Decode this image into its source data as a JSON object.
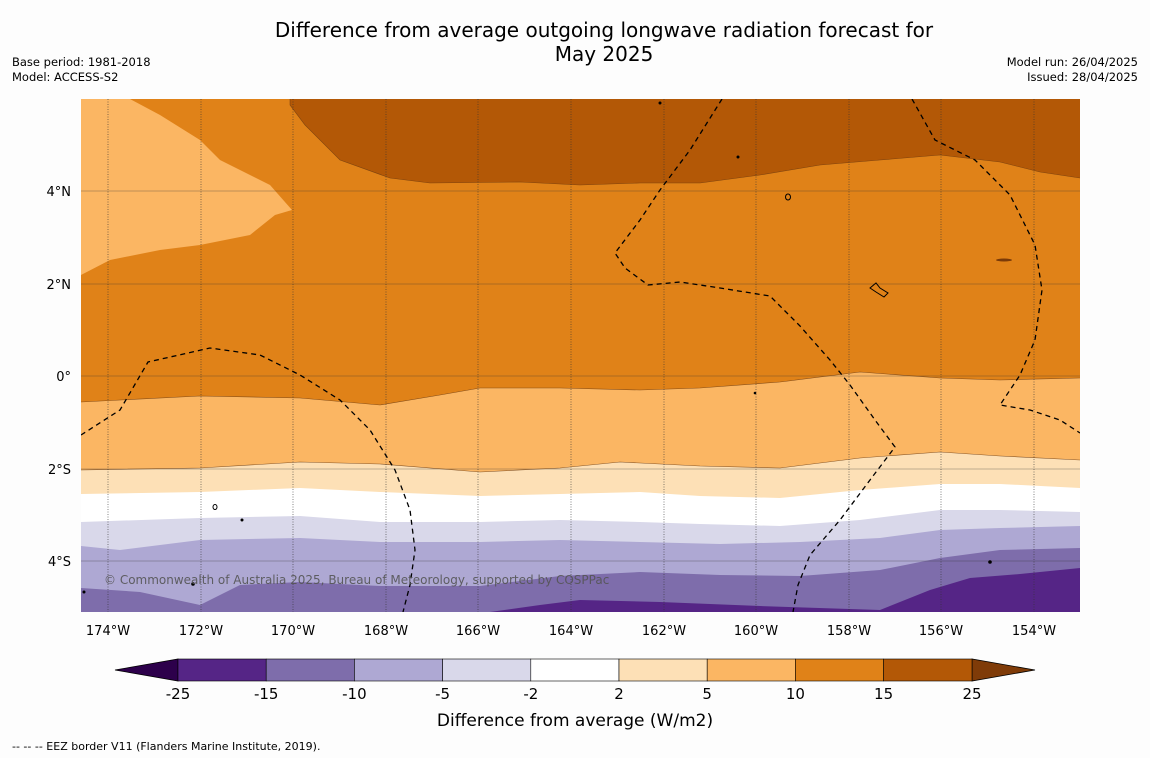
{
  "title_line1": "Difference from average outgoing longwave radiation forecast for",
  "title_line2": "May 2025",
  "base_period": "Base period: 1981-2018",
  "model": "Model: ACCESS-S2",
  "model_run": "Model run: 26/04/2025",
  "issued": "Issued: 28/04/2025",
  "copyright": "© Commonwealth of Australia 2025, Bureau of Meteorology, supported by COSPPac",
  "footnote": "--  --  -- EEZ border V11 (Flanders Marine Institute, 2019).",
  "lon_ticks": [
    "174°W",
    "172°W",
    "170°W",
    "168°W",
    "166°W",
    "164°W",
    "162°W",
    "160°W",
    "158°W",
    "156°W",
    "154°W"
  ],
  "lat_ticks": [
    "4°N",
    "2°N",
    "0°",
    "2°S",
    "4°S"
  ],
  "colorbar": {
    "title": "Difference from average (W/m2)",
    "labels": [
      "-25",
      "-15",
      "-10",
      "-5",
      "-2",
      "2",
      "5",
      "10",
      "15",
      "25"
    ],
    "colors": [
      "#552586",
      "#7e6dab",
      "#aea8d3",
      "#d9d8ea",
      "#ffffff",
      "#fde0b6",
      "#fbb663",
      "#e08218",
      "#b35806"
    ],
    "under_color": "#2d004b",
    "over_color": "#7f3b08"
  },
  "chart_data": {
    "type": "heatmap",
    "title": "Difference from average outgoing longwave radiation forecast for May 2025",
    "colorbar_label": "Difference from average (W/m2)",
    "levels": [
      -25,
      -15,
      -10,
      -5,
      -2,
      2,
      5,
      10,
      15,
      25
    ],
    "lon_range": [
      "174°W",
      "153°W"
    ],
    "lat_range": [
      "5°S",
      "6°N"
    ],
    "bands_north_to_south": [
      {
        "range": "15 to 25",
        "region": "north of ~4.3°N east of 170°W"
      },
      {
        "range": "10 to 15",
        "region": "~0.5°S to ~4°N"
      },
      {
        "range": "5 to 10",
        "region": "~0.5°S to ~2°S; northwest corner"
      },
      {
        "range": "2 to 5",
        "region": "~2°S to ~2.5°S"
      },
      {
        "range": "-2 to 2",
        "region": "~2.5°S to ~3.2°S"
      },
      {
        "range": "-5 to -2",
        "region": "~3.2°S to ~3.6°S"
      },
      {
        "range": "-10 to -5",
        "region": "~3.6°S to ~4.3°S"
      },
      {
        "range": "-15 to -10",
        "region": "~4.3°S to ~5°S"
      },
      {
        "range": "-25 to -15",
        "region": "southeast corner south of ~4.5°S"
      }
    ]
  }
}
